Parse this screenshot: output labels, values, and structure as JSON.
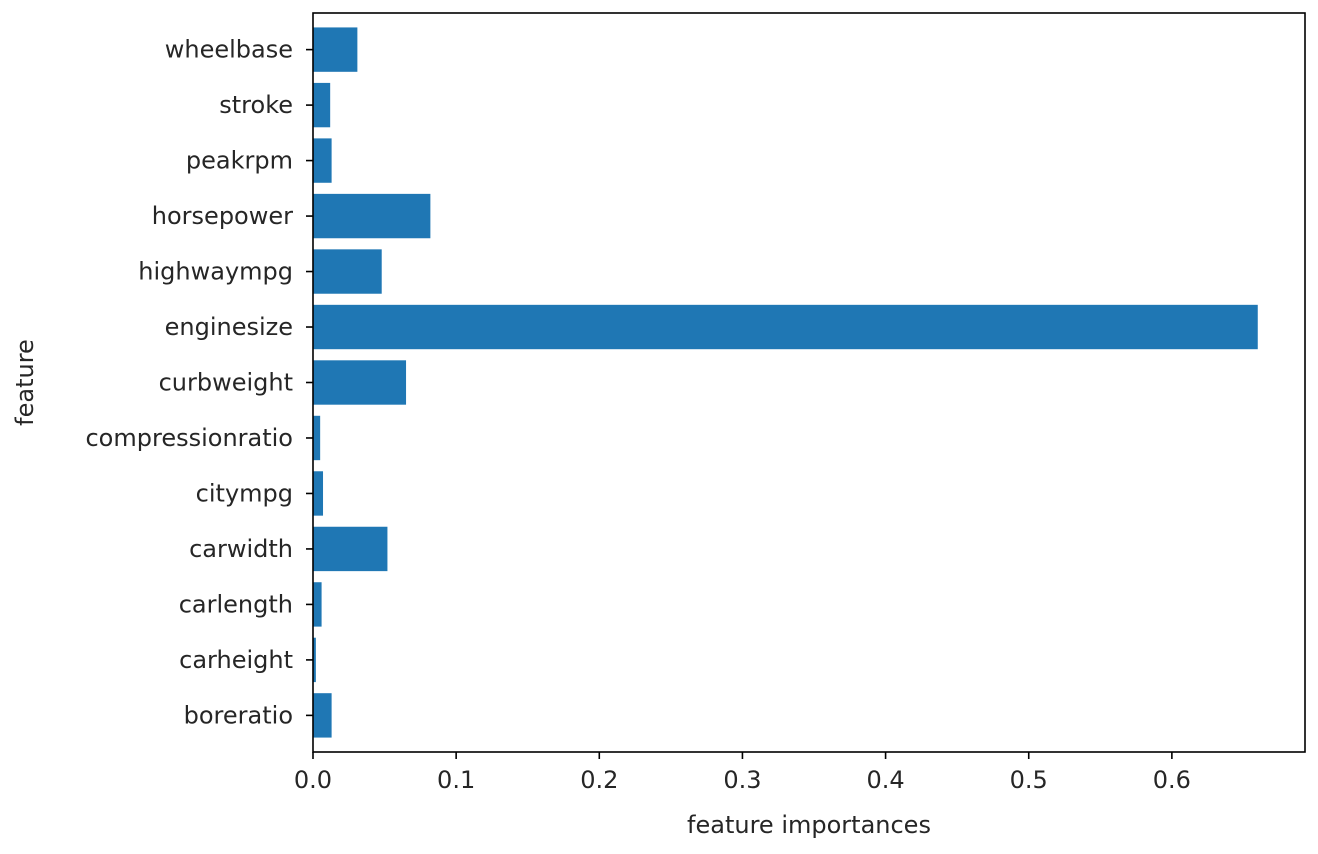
{
  "chart_data": {
    "type": "bar",
    "orientation": "horizontal",
    "categories": [
      "boreratio",
      "carheight",
      "carlength",
      "carwidth",
      "citympg",
      "compressionratio",
      "curbweight",
      "enginesize",
      "highwaympg",
      "horsepower",
      "peakrpm",
      "stroke",
      "wheelbase"
    ],
    "values": [
      0.013,
      0.002,
      0.006,
      0.052,
      0.007,
      0.005,
      0.065,
      0.66,
      0.048,
      0.082,
      0.013,
      0.012,
      0.031
    ],
    "xlabel": "feature importances",
    "ylabel": "feature",
    "xlim": [
      0,
      0.693
    ],
    "xticks": [
      0.0,
      0.1,
      0.2,
      0.3,
      0.4,
      0.5,
      0.6
    ],
    "xtick_labels": [
      "0.0",
      "0.1",
      "0.2",
      "0.3",
      "0.4",
      "0.5",
      "0.6"
    ],
    "grid": false,
    "bar_color": "#1f77b4"
  }
}
